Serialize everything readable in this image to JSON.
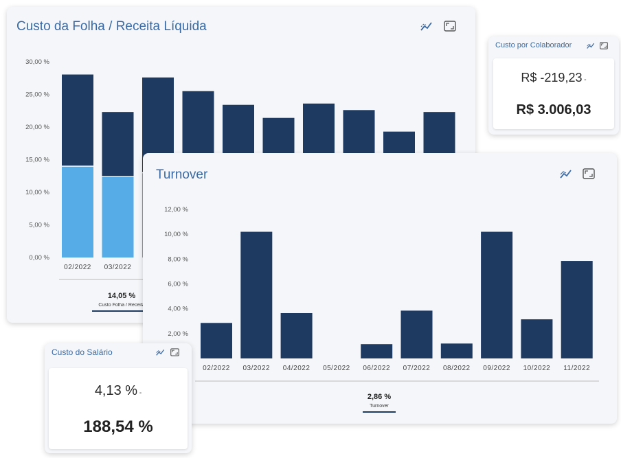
{
  "card_folha": {
    "title": "Custo da Folha / Receita Líquida",
    "chart_data": {
      "type": "bar",
      "stacked": true,
      "categories": [
        "02/2022",
        "03/2022",
        "",
        "",
        "",
        "",
        "",
        "",
        "",
        ""
      ],
      "series": [
        {
          "values": [
            14.0,
            12.4,
            13.0,
            null,
            null,
            null,
            null,
            null,
            null,
            null
          ],
          "color": "#56ace6"
        },
        {
          "values": [
            14.05,
            9.9,
            14.6,
            25.5,
            23.4,
            21.4,
            23.6,
            22.6,
            19.3,
            22.3
          ],
          "color": "#1f3a60"
        }
      ],
      "y_ticks": [
        "30,00 %",
        "25,00 %",
        "20,00 %",
        "15,00 %",
        "10,00 %",
        "5,00 %",
        "0,00 %"
      ],
      "ylim": [
        0,
        30
      ]
    },
    "legend_value": "14,05 %",
    "legend_label": "Custo Folha / Receita"
  },
  "card_colaborador": {
    "title": "Custo por Colaborador",
    "delta": "R$ -219,23",
    "value": "R$ 3.006,03"
  },
  "card_turnover": {
    "title": "Turnover",
    "chart_data": {
      "type": "bar",
      "categories": [
        "02/2022",
        "03/2022",
        "04/2022",
        "05/2022",
        "06/2022",
        "07/2022",
        "08/2022",
        "09/2022",
        "10/2022",
        "11/2022"
      ],
      "series": [
        {
          "name": "Turnover",
          "values": [
            2.86,
            10.2,
            3.65,
            0,
            1.15,
            3.85,
            1.2,
            10.2,
            3.15,
            7.85
          ],
          "color": "#1f3a60"
        }
      ],
      "y_ticks": [
        "12,00 %",
        "10,00 %",
        "8,00 %",
        "6,00 %",
        "4,00 %",
        "2,00 %"
      ],
      "ylim": [
        0,
        12
      ]
    },
    "legend_value": "2,86 %",
    "legend_label": "Turnover"
  },
  "card_salario": {
    "title": "Custo do Salário",
    "delta": "4,13 %",
    "value": "188,54 %"
  },
  "icons": {
    "trend": "trend-icon",
    "expand": "expand-icon"
  }
}
